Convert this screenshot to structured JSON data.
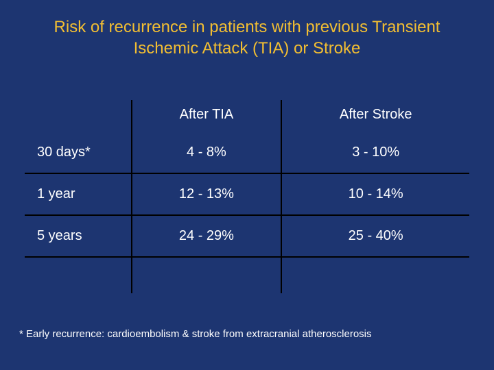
{
  "slide": {
    "title": "Risk of recurrence in patients with previous Transient Ischemic Attack (TIA) or Stroke",
    "footnote": "* Early recurrence: cardioembolism & stroke from extracranial atherosclerosis",
    "background_color": "#1d3571",
    "title_color": "#f2be32",
    "text_color": "#ffffff",
    "rule_color": "#000000",
    "title_fontsize": 24,
    "table_fontsize": 20,
    "footnote_fontsize": 15
  },
  "table": {
    "type": "table",
    "columns": [
      "",
      "After TIA",
      "After Stroke"
    ],
    "rows": [
      [
        "30 days*",
        "4 - 8%",
        "3 - 10%"
      ],
      [
        "1 year",
        "12 - 13%",
        "10 - 14%"
      ],
      [
        "5 years",
        "24 - 29%",
        "25 - 40%"
      ]
    ],
    "col_widths_pct": [
      24,
      38,
      38
    ],
    "cell_align": [
      "left",
      "center",
      "center"
    ]
  }
}
